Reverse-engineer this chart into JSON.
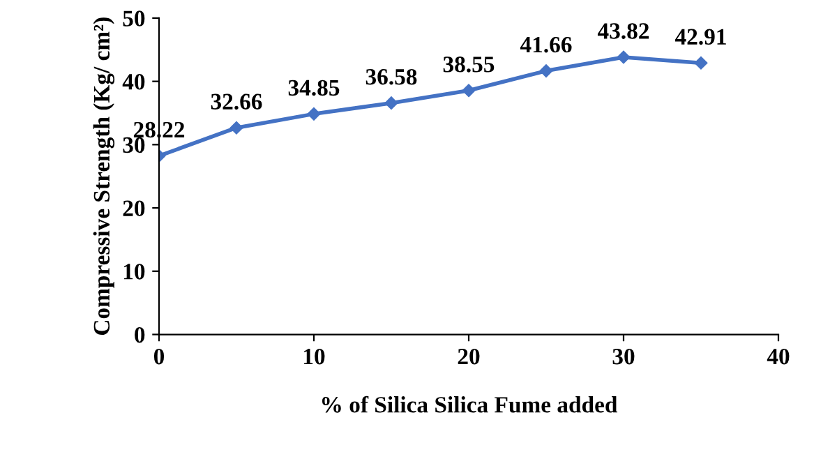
{
  "chart_data": {
    "type": "line",
    "xlabel": "% of Silica Silica Fume added",
    "ylabel": "Compressive Strength (Kg/ cm²)",
    "x": [
      0,
      5,
      10,
      15,
      20,
      25,
      30,
      35
    ],
    "series": [
      {
        "color": "#4472c4",
        "values": [
          28.22,
          32.66,
          34.85,
          36.58,
          38.55,
          41.66,
          43.82,
          42.91
        ]
      }
    ],
    "xlim": [
      0,
      40
    ],
    "xticks": [
      0,
      10,
      20,
      30,
      40
    ],
    "ylim": [
      0,
      50
    ],
    "yticks": [
      0,
      10,
      20,
      30,
      40,
      50
    ],
    "marker": "diamond",
    "line_style": "solid",
    "data_labels": true,
    "grid": false,
    "legend": false
  }
}
